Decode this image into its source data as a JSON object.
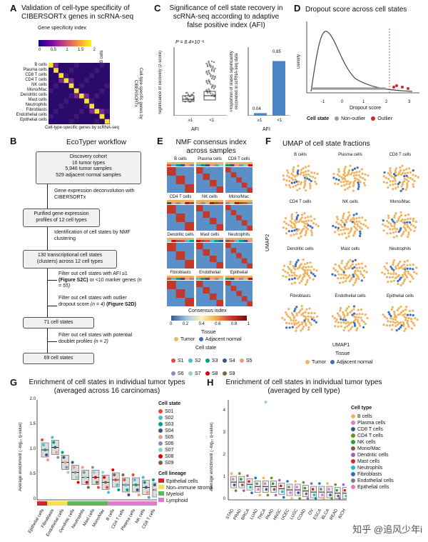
{
  "panelA": {
    "letter": "A",
    "title": "Validation of cell-type specificity of CIBERSORTx genes in scRNA-seq",
    "legend_title": "Gene specificity index",
    "legend_ticks": [
      "0",
      "0.5",
      "1",
      "1.5",
      "2"
    ],
    "rows": [
      "B cells",
      "Plasma cells",
      "CD8 T cells",
      "CD4 T cells",
      "NK cells",
      "Mono/Mac",
      "Dendritic cells",
      "Mast cells",
      "Neutrophils",
      "Fibroblasts",
      "Endothelial cells",
      "Epithelial cells"
    ],
    "ylabel": "Cell-type-specific genes by CIBERSORTx",
    "xlabel": "Cell-type-specific genes by scRNA-seq"
  },
  "panelB": {
    "letter": "B",
    "title": "EcoTyper workflow",
    "box1": "Discovery cohort",
    "box1_l2": "16 tumor types",
    "box1_l3": "5,946 tumor samples",
    "box1_l4": "529 adjacent normal samples",
    "step1": "Gene expression deconvolution with CIBERSORTx",
    "box2": "Purified gene expression profiles of 12 cell types",
    "step2": "Identification of cell states by NMF clustering",
    "box3": "130 transcriptional cell states (clusters) across 12 cell types",
    "filt1": "Filter out cell states with AFI ≥1",
    "filt1_ref": "(Figure S2C)",
    "filt1_b": "or <10 marker genes",
    "filt1_n": "(n = 55)",
    "filt2": "Filter out cell states with outlier dropout score",
    "filt2_n": "(n = 4)",
    "filt2_ref": "(Figure S2D)",
    "box4": "71 cell states",
    "filt3": "Filter out cell states with potential doublet profiles",
    "filt3_n": "(n = 2)",
    "box5": "69 cell states"
  },
  "panelC": {
    "letter": "C",
    "title": "Significance of cell state recovery in scRNA-seq according to adaptive false positive index (AFI)",
    "pval": "P = 8.4×10⁻⁶",
    "ylabel1": "Significance of recovery (z-score)",
    "ylabel2": "Proportion of states significantly recovered in scRNA-seq data",
    "xcats": [
      "≥1",
      "<1"
    ],
    "xlabel": "AFI",
    "bar_labels": [
      "0.04",
      "0.85"
    ]
  },
  "panelD": {
    "letter": "D",
    "title": "Dropout score across cell states",
    "ylabel": "Density",
    "xlabel": "Dropout score",
    "xticks": [
      "-1",
      "0",
      "1",
      "2",
      "3"
    ],
    "legend_title": "Cell state",
    "legend_items": [
      "Non-outlier",
      "Outlier"
    ]
  },
  "panelE": {
    "letter": "E",
    "title": "NMF consensus index across samples",
    "cells": [
      "B cells",
      "Plasma cells",
      "CD8 T cells",
      "CD4 T cells",
      "NK cells",
      "Mono/Mac",
      "Dendritic cells",
      "Mast cells",
      "Neutrophils",
      "Fibroblasts",
      "Endothelial",
      "Epithelial"
    ],
    "colorbar_title": "Consensus index",
    "colorbar_ticks": [
      "0",
      "0.2",
      "0.4",
      "0.6",
      "0.8",
      "1"
    ],
    "tissue_title": "Tissue",
    "tissue_items": [
      "Tumor",
      "Adjacent normal"
    ],
    "state_title": "Cell state",
    "state_items": [
      "S1",
      "S2",
      "S3",
      "S4",
      "S5",
      "S6",
      "S7",
      "S8",
      "S9"
    ]
  },
  "panelF": {
    "letter": "F",
    "title": "UMAP of cell state fractions",
    "cells": [
      "B cells",
      "Plasma cells",
      "CD8 T cells",
      "CD4 T cells",
      "NK cells",
      "Mono/Mac",
      "Dendritic cells",
      "Mast cells",
      "Neutrophils",
      "Fibroblasts",
      "Endothelial cells",
      "Epithelial cells"
    ],
    "xlabel": "UMAP1",
    "ylabel": "UMAP2",
    "tissue_title": "Tissue",
    "tissue_items": [
      "Tumor",
      "Adjacent normal"
    ]
  },
  "panelG": {
    "letter": "G",
    "title": "Enrichment of cell states in individual tumor types",
    "subtitle": "(averaged across 16 carcinomas)",
    "ylabel": "Average enrichment (−log₁₀ q-value)",
    "yticks": [
      "0",
      "0.5",
      "1.0",
      "1.5",
      "2.0"
    ],
    "state_legend_title": "Cell state",
    "state_legend": [
      "S01",
      "S02",
      "S03",
      "S04",
      "S05",
      "S06",
      "S07",
      "S08",
      "S09"
    ],
    "lineage_title": "Cell lineage",
    "lineage_items": [
      "Epithelial cells",
      "Non–immune stroma",
      "Myeloid",
      "Lymphoid"
    ]
  },
  "panelH": {
    "letter": "H",
    "title": "Enrichment of cell states in individual tumor types",
    "subtitle": "(averaged by cell type)",
    "ylabel": "Average enrichment (−log₁₀ q-value)",
    "yticks": [
      "0",
      "1",
      "2",
      "3",
      "4"
    ],
    "legend_title": "Cell type",
    "legend_items": [
      "B cells",
      "Plasma cells",
      "CD8 T cells",
      "CD4 T cells",
      "NK cells",
      "Mono/Mac",
      "Dendritic cells",
      "Mast cells",
      "Neutrophils",
      "Fibroblasts",
      "Endothelial cells",
      "Epithelial cells"
    ]
  },
  "watermark": "知乎 @追风少年i",
  "chart_data": [
    {
      "type": "bar",
      "title": "Proportion of states significantly recovered in scRNA-seq data",
      "categories": [
        "≥1",
        "<1"
      ],
      "values": [
        0.04,
        0.85
      ],
      "xlabel": "AFI",
      "ylim": [
        0,
        1
      ]
    },
    {
      "type": "bar",
      "title": "Enrichment of cell states in individual tumor types (averaged across 16 carcinomas)",
      "categories": [
        "Epithelial cells",
        "Fibroblasts",
        "Endothelial cells",
        "Dendritic cells",
        "Neutrophils",
        "Mast cells",
        "Mono/Mac",
        "B cells",
        "CD4 T cells",
        "Plasma cells",
        "NK cells",
        "CD8 T cells"
      ],
      "values": [
        1.0,
        1.05,
        0.75,
        0.55,
        0.45,
        0.45,
        0.35,
        0.4,
        0.3,
        0.3,
        0.25,
        0.2
      ],
      "ylabel": "Average enrichment (−log10 q-value)",
      "ylim": [
        0,
        2.0
      ]
    },
    {
      "type": "bar",
      "title": "Enrichment of cell states in individual tumor types (averaged by cell type)",
      "categories": [
        "STAD",
        "PRAD",
        "BRCA",
        "LUAD",
        "THCA",
        "PAAD",
        "HNSC",
        "UCEC",
        "LUSC",
        "COAD",
        "OV",
        "ESCA",
        "BLCA",
        "READ",
        "KICH"
      ],
      "values": [
        0.8,
        0.8,
        0.7,
        0.6,
        0.6,
        0.6,
        0.5,
        0.45,
        0.45,
        0.4,
        0.35,
        0.35,
        0.35,
        0.3,
        0.3
      ],
      "ylabel": "Average enrichment (−log10 q-value)",
      "ylim": [
        0,
        4.5
      ]
    }
  ]
}
